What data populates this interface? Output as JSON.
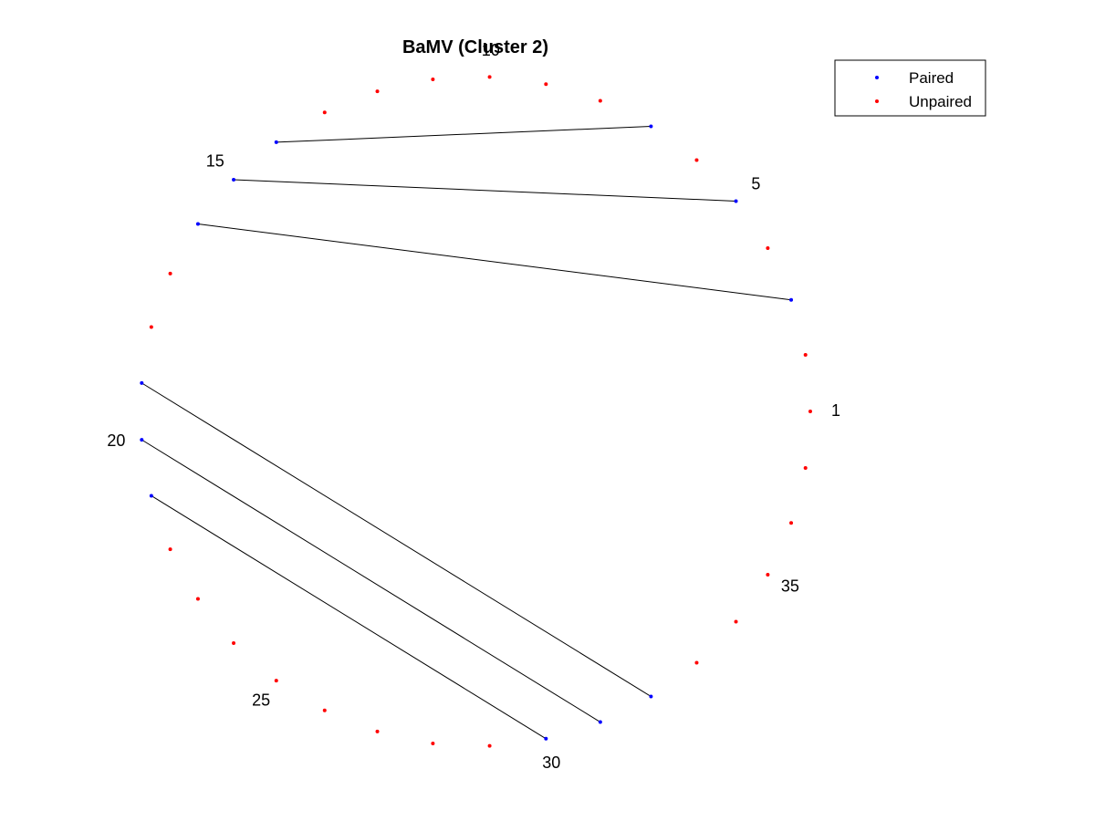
{
  "figure": {
    "title": "BaMV (Cluster 2)"
  },
  "legend": {
    "placement": "top-right",
    "entries": [
      {
        "label": "Paired",
        "color": "#0000ff"
      },
      {
        "label": "Unpaired",
        "color": "#ff0000"
      }
    ]
  },
  "colors": {
    "paired": "#0000ff",
    "unpaired": "#ff0000",
    "arc": "#000000"
  },
  "chart_data": {
    "type": "scatter",
    "layout": "circular",
    "title": "BaMV (Cluster 2)",
    "sequence_length": 37,
    "labeled_positions": [
      1,
      5,
      10,
      15,
      20,
      25,
      30,
      35
    ],
    "paired_positions": [
      3,
      5,
      7,
      14,
      15,
      16,
      19,
      20,
      21,
      30,
      31,
      32
    ],
    "unpaired_positions": [
      1,
      2,
      4,
      6,
      8,
      9,
      10,
      11,
      12,
      13,
      17,
      18,
      22,
      23,
      24,
      25,
      26,
      27,
      28,
      29,
      33,
      34,
      35,
      36,
      37
    ],
    "pairs": [
      [
        3,
        16
      ],
      [
        5,
        15
      ],
      [
        7,
        14
      ],
      [
        19,
        32
      ],
      [
        20,
        31
      ],
      [
        21,
        30
      ]
    ]
  }
}
